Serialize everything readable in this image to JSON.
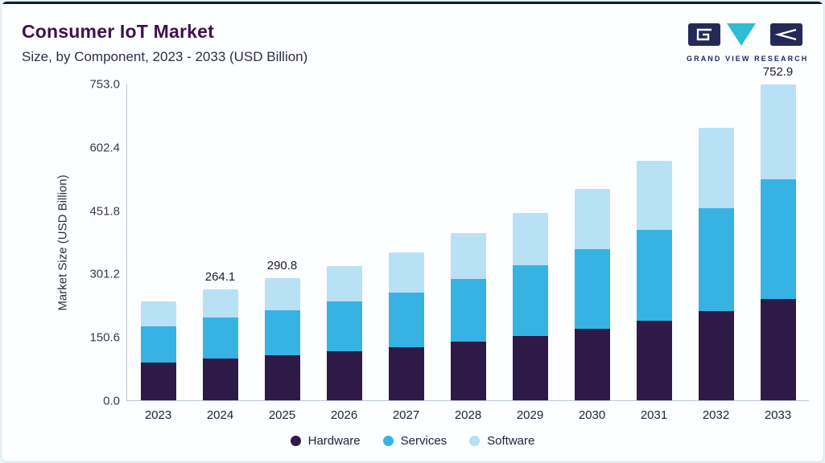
{
  "header": {
    "title": "Consumer IoT Market",
    "subtitle": "Size, by Component, 2023 - 2033 (USD Billion)"
  },
  "logo": {
    "text": "GRAND VIEW RESEARCH",
    "mark_dark_color": "#232a57",
    "mark_teal_color": "#2fbcd4"
  },
  "colors": {
    "title": "#3d1152",
    "card_top_border": "#0e1c2c",
    "axis_line": "#b9c6d2"
  },
  "chart_data": {
    "type": "bar",
    "stacked": true,
    "title": "Consumer IoT Market",
    "subtitle": "Size, by Component, 2023 - 2033 (USD Billion)",
    "xlabel": "",
    "ylabel": "Market Size (USD Billion)",
    "ylim": [
      0,
      753.0
    ],
    "yticks": [
      0.0,
      150.6,
      301.2,
      451.8,
      602.4,
      753.0
    ],
    "grid": false,
    "legend_position": "bottom",
    "categories": [
      "2023",
      "2024",
      "2025",
      "2026",
      "2027",
      "2028",
      "2029",
      "2030",
      "2031",
      "2032",
      "2033"
    ],
    "series": [
      {
        "name": "Hardware",
        "color": "#2e1a47",
        "values": [
          89.7,
          98.8,
          107.0,
          116.0,
          125.6,
          139.3,
          153.6,
          170.1,
          189.5,
          212.0,
          240.9
        ]
      },
      {
        "name": "Services",
        "color": "#36b3e3",
        "values": [
          87.3,
          98.0,
          108.2,
          119.5,
          132.0,
          149.3,
          167.9,
          189.7,
          215.8,
          246.5,
          286.1
        ]
      },
      {
        "name": "Software",
        "color": "#b8e1f5",
        "values": [
          59.0,
          67.3,
          75.6,
          85.0,
          95.2,
          109.5,
          125.0,
          143.4,
          165.6,
          191.8,
          225.9
        ]
      }
    ],
    "totals": [
      236.0,
      264.1,
      290.8,
      320.5,
      352.8,
      398.1,
      446.5,
      503.2,
      570.9,
      650.3,
      752.9
    ],
    "bar_labels": [
      "",
      "264.1",
      "290.8",
      "",
      "",
      "",
      "",
      "",
      "",
      "",
      "752.9"
    ]
  }
}
